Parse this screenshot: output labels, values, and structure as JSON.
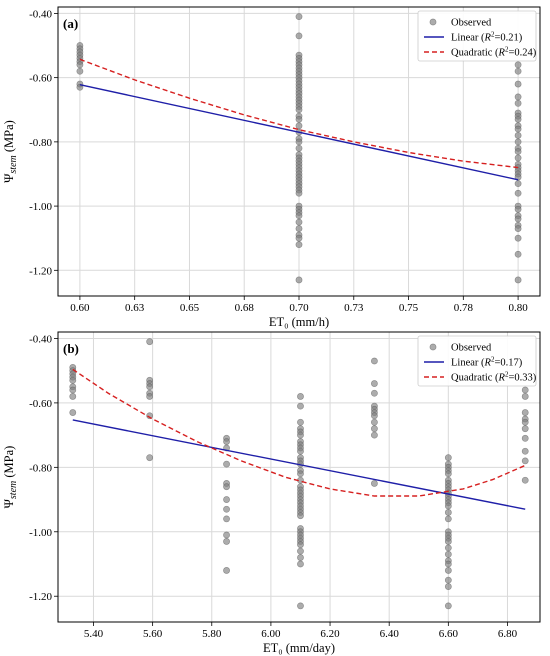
{
  "chart_data": [
    {
      "type": "scatter",
      "panel_label": "(a)",
      "xlabel": "ET₀ (mm/h)",
      "ylabel_main": "Ψ",
      "ylabel_sub": "stem",
      "ylabel_unit": " (MPa)",
      "xlim": [
        0.59,
        0.81
      ],
      "ylim": [
        -1.28,
        -0.38
      ],
      "x_ticks": [
        0.6,
        0.625,
        0.65,
        0.675,
        0.7,
        0.725,
        0.75,
        0.775,
        0.8
      ],
      "x_tick_labels": [
        "0.60",
        "0.63",
        "0.65",
        "0.68",
        "0.70",
        "0.73",
        "0.75",
        "0.78",
        "0.80"
      ],
      "y_ticks": [
        -1.2,
        -1.0,
        -0.8,
        -0.6,
        -0.4
      ],
      "y_tick_labels": [
        "-1.20",
        "-1.00",
        "-0.80",
        "-0.60",
        "-0.40"
      ],
      "grid": true,
      "legend_position": "top-right",
      "legend": [
        {
          "label": "Observed",
          "kind": "marker"
        },
        {
          "label_pre": "Linear (",
          "label_r": "R",
          "label_sup": "2",
          "label_post": "=0.21)",
          "kind": "solid"
        },
        {
          "label_pre": "Quadratic (",
          "label_r": "R",
          "label_sup": "2",
          "label_post": "=0.24)",
          "kind": "dashed"
        }
      ],
      "series": [
        {
          "name": "Observed",
          "points": [
            [
              0.6,
              -0.5
            ],
            [
              0.6,
              -0.51
            ],
            [
              0.6,
              -0.52
            ],
            [
              0.6,
              -0.53
            ],
            [
              0.6,
              -0.54
            ],
            [
              0.6,
              -0.55
            ],
            [
              0.6,
              -0.56
            ],
            [
              0.6,
              -0.58
            ],
            [
              0.6,
              -0.62
            ],
            [
              0.6,
              -0.63
            ],
            [
              0.7,
              -0.41
            ],
            [
              0.7,
              -0.47
            ],
            [
              0.7,
              -0.53
            ],
            [
              0.7,
              -0.54
            ],
            [
              0.7,
              -0.55
            ],
            [
              0.7,
              -0.56
            ],
            [
              0.7,
              -0.57
            ],
            [
              0.7,
              -0.58
            ],
            [
              0.7,
              -0.59
            ],
            [
              0.7,
              -0.6
            ],
            [
              0.7,
              -0.61
            ],
            [
              0.7,
              -0.62
            ],
            [
              0.7,
              -0.63
            ],
            [
              0.7,
              -0.64
            ],
            [
              0.7,
              -0.65
            ],
            [
              0.7,
              -0.66
            ],
            [
              0.7,
              -0.67
            ],
            [
              0.7,
              -0.68
            ],
            [
              0.7,
              -0.69
            ],
            [
              0.7,
              -0.7
            ],
            [
              0.7,
              -0.72
            ],
            [
              0.7,
              -0.73
            ],
            [
              0.7,
              -0.75
            ],
            [
              0.7,
              -0.77
            ],
            [
              0.7,
              -0.79
            ],
            [
              0.7,
              -0.8
            ],
            [
              0.7,
              -0.82
            ],
            [
              0.7,
              -0.84
            ],
            [
              0.7,
              -0.85
            ],
            [
              0.7,
              -0.86
            ],
            [
              0.7,
              -0.87
            ],
            [
              0.7,
              -0.88
            ],
            [
              0.7,
              -0.89
            ],
            [
              0.7,
              -0.9
            ],
            [
              0.7,
              -0.91
            ],
            [
              0.7,
              -0.92
            ],
            [
              0.7,
              -0.93
            ],
            [
              0.7,
              -0.94
            ],
            [
              0.7,
              -0.95
            ],
            [
              0.7,
              -0.96
            ],
            [
              0.7,
              -1.0
            ],
            [
              0.7,
              -1.01
            ],
            [
              0.7,
              -1.02
            ],
            [
              0.7,
              -1.03
            ],
            [
              0.7,
              -1.05
            ],
            [
              0.7,
              -1.07
            ],
            [
              0.7,
              -1.09
            ],
            [
              0.7,
              -1.1
            ],
            [
              0.7,
              -1.12
            ],
            [
              0.7,
              -1.23
            ],
            [
              0.8,
              -0.56
            ],
            [
              0.8,
              -0.58
            ],
            [
              0.8,
              -0.62
            ],
            [
              0.8,
              -0.66
            ],
            [
              0.8,
              -0.68
            ],
            [
              0.8,
              -0.71
            ],
            [
              0.8,
              -0.72
            ],
            [
              0.8,
              -0.73
            ],
            [
              0.8,
              -0.75
            ],
            [
              0.8,
              -0.76
            ],
            [
              0.8,
              -0.78
            ],
            [
              0.8,
              -0.8
            ],
            [
              0.8,
              -0.82
            ],
            [
              0.8,
              -0.83
            ],
            [
              0.8,
              -0.85
            ],
            [
              0.8,
              -0.87
            ],
            [
              0.8,
              -0.88
            ],
            [
              0.8,
              -0.89
            ],
            [
              0.8,
              -0.9
            ],
            [
              0.8,
              -0.91
            ],
            [
              0.8,
              -0.93
            ],
            [
              0.8,
              -0.96
            ],
            [
              0.8,
              -1.0
            ],
            [
              0.8,
              -1.01
            ],
            [
              0.8,
              -1.03
            ],
            [
              0.8,
              -1.04
            ],
            [
              0.8,
              -1.06
            ],
            [
              0.8,
              -1.07
            ],
            [
              0.8,
              -1.1
            ],
            [
              0.8,
              -1.15
            ],
            [
              0.8,
              -1.23
            ]
          ]
        },
        {
          "name": "Linear",
          "x": [
            0.6,
            0.8
          ],
          "y": [
            -0.622,
            -0.918
          ]
        },
        {
          "name": "Quadratic",
          "x": [
            0.6,
            0.625,
            0.65,
            0.675,
            0.7,
            0.725,
            0.75,
            0.775,
            0.8
          ],
          "y": [
            -0.543,
            -0.607,
            -0.664,
            -0.716,
            -0.762,
            -0.8,
            -0.833,
            -0.86,
            -0.88
          ]
        }
      ],
      "colors": {
        "observed": "#808080",
        "linear": "#1f1fa8",
        "quadratic": "#d62020"
      }
    },
    {
      "type": "scatter",
      "panel_label": "(b)",
      "xlabel": "ET₀ (mm/day)",
      "ylabel_main": "Ψ",
      "ylabel_sub": "stem",
      "ylabel_unit": " (MPa)",
      "xlim": [
        5.28,
        6.91
      ],
      "ylim": [
        -1.28,
        -0.38
      ],
      "x_ticks": [
        5.4,
        5.6,
        5.8,
        6.0,
        6.2,
        6.4,
        6.6,
        6.8
      ],
      "x_tick_labels": [
        "5.40",
        "5.60",
        "5.80",
        "6.00",
        "6.20",
        "6.40",
        "6.60",
        "6.80"
      ],
      "y_ticks": [
        -1.2,
        -1.0,
        -0.8,
        -0.6,
        -0.4
      ],
      "y_tick_labels": [
        "-1.20",
        "-1.00",
        "-0.80",
        "-0.60",
        "-0.40"
      ],
      "grid": true,
      "legend_position": "top-right",
      "legend": [
        {
          "label": "Observed",
          "kind": "marker"
        },
        {
          "label_pre": "Linear (",
          "label_r": "R",
          "label_sup": "2",
          "label_post": "=0.17)",
          "kind": "solid"
        },
        {
          "label_pre": "Quadratic (",
          "label_r": "R",
          "label_sup": "2",
          "label_post": "=0.33)",
          "kind": "dashed"
        }
      ],
      "series": [
        {
          "name": "Observed",
          "points": [
            [
              5.33,
              -0.49
            ],
            [
              5.33,
              -0.5
            ],
            [
              5.33,
              -0.51
            ],
            [
              5.33,
              -0.52
            ],
            [
              5.33,
              -0.53
            ],
            [
              5.33,
              -0.55
            ],
            [
              5.33,
              -0.56
            ],
            [
              5.33,
              -0.58
            ],
            [
              5.33,
              -0.63
            ],
            [
              5.59,
              -0.41
            ],
            [
              5.59,
              -0.53
            ],
            [
              5.59,
              -0.54
            ],
            [
              5.59,
              -0.55
            ],
            [
              5.59,
              -0.57
            ],
            [
              5.59,
              -0.58
            ],
            [
              5.59,
              -0.64
            ],
            [
              5.59,
              -0.77
            ],
            [
              5.85,
              -0.71
            ],
            [
              5.85,
              -0.72
            ],
            [
              5.85,
              -0.74
            ],
            [
              5.85,
              -0.79
            ],
            [
              5.85,
              -0.85
            ],
            [
              5.85,
              -0.86
            ],
            [
              5.85,
              -0.9
            ],
            [
              5.85,
              -0.93
            ],
            [
              5.85,
              -0.96
            ],
            [
              5.85,
              -1.01
            ],
            [
              5.85,
              -1.03
            ],
            [
              5.85,
              -1.12
            ],
            [
              6.1,
              -0.58
            ],
            [
              6.1,
              -0.61
            ],
            [
              6.1,
              -0.66
            ],
            [
              6.1,
              -0.68
            ],
            [
              6.1,
              -0.69
            ],
            [
              6.1,
              -0.7
            ],
            [
              6.1,
              -0.72
            ],
            [
              6.1,
              -0.73
            ],
            [
              6.1,
              -0.74
            ],
            [
              6.1,
              -0.75
            ],
            [
              6.1,
              -0.77
            ],
            [
              6.1,
              -0.78
            ],
            [
              6.1,
              -0.79
            ],
            [
              6.1,
              -0.81
            ],
            [
              6.1,
              -0.82
            ],
            [
              6.1,
              -0.84
            ],
            [
              6.1,
              -0.86
            ],
            [
              6.1,
              -0.87
            ],
            [
              6.1,
              -0.88
            ],
            [
              6.1,
              -0.89
            ],
            [
              6.1,
              -0.9
            ],
            [
              6.1,
              -0.91
            ],
            [
              6.1,
              -0.92
            ],
            [
              6.1,
              -0.93
            ],
            [
              6.1,
              -0.94
            ],
            [
              6.1,
              -0.95
            ],
            [
              6.1,
              -0.99
            ],
            [
              6.1,
              -1.0
            ],
            [
              6.1,
              -1.01
            ],
            [
              6.1,
              -1.02
            ],
            [
              6.1,
              -1.03
            ],
            [
              6.1,
              -1.04
            ],
            [
              6.1,
              -1.06
            ],
            [
              6.1,
              -1.08
            ],
            [
              6.1,
              -1.1
            ],
            [
              6.1,
              -1.23
            ],
            [
              6.35,
              -0.47
            ],
            [
              6.35,
              -0.54
            ],
            [
              6.35,
              -0.57
            ],
            [
              6.35,
              -0.61
            ],
            [
              6.35,
              -0.62
            ],
            [
              6.35,
              -0.63
            ],
            [
              6.35,
              -0.64
            ],
            [
              6.35,
              -0.66
            ],
            [
              6.35,
              -0.68
            ],
            [
              6.35,
              -0.7
            ],
            [
              6.35,
              -0.85
            ],
            [
              6.6,
              -0.77
            ],
            [
              6.6,
              -0.79
            ],
            [
              6.6,
              -0.8
            ],
            [
              6.6,
              -0.81
            ],
            [
              6.6,
              -0.82
            ],
            [
              6.6,
              -0.84
            ],
            [
              6.6,
              -0.85
            ],
            [
              6.6,
              -0.86
            ],
            [
              6.6,
              -0.87
            ],
            [
              6.6,
              -0.88
            ],
            [
              6.6,
              -0.89
            ],
            [
              6.6,
              -0.9
            ],
            [
              6.6,
              -0.91
            ],
            [
              6.6,
              -0.92
            ],
            [
              6.6,
              -0.94
            ],
            [
              6.6,
              -0.96
            ],
            [
              6.6,
              -1.0
            ],
            [
              6.6,
              -1.01
            ],
            [
              6.6,
              -1.02
            ],
            [
              6.6,
              -1.03
            ],
            [
              6.6,
              -1.05
            ],
            [
              6.6,
              -1.07
            ],
            [
              6.6,
              -1.09
            ],
            [
              6.6,
              -1.1
            ],
            [
              6.6,
              -1.12
            ],
            [
              6.6,
              -1.15
            ],
            [
              6.6,
              -1.17
            ],
            [
              6.6,
              -1.23
            ],
            [
              6.86,
              -0.56
            ],
            [
              6.86,
              -0.58
            ],
            [
              6.86,
              -0.63
            ],
            [
              6.86,
              -0.65
            ],
            [
              6.86,
              -0.66
            ],
            [
              6.86,
              -0.68
            ],
            [
              6.86,
              -0.71
            ],
            [
              6.86,
              -0.75
            ],
            [
              6.86,
              -0.78
            ],
            [
              6.86,
              -0.84
            ]
          ]
        },
        {
          "name": "Linear",
          "x": [
            5.33,
            6.86
          ],
          "y": [
            -0.653,
            -0.93
          ]
        },
        {
          "name": "Quadratic",
          "x": [
            5.33,
            5.45,
            5.6,
            5.75,
            5.9,
            6.05,
            6.2,
            6.35,
            6.5,
            6.65,
            6.75,
            6.86
          ],
          "y": [
            -0.496,
            -0.57,
            -0.65,
            -0.72,
            -0.78,
            -0.831,
            -0.867,
            -0.889,
            -0.889,
            -0.867,
            -0.838,
            -0.794
          ]
        }
      ],
      "colors": {
        "observed": "#808080",
        "linear": "#1f1fa8",
        "quadratic": "#d62020"
      }
    }
  ]
}
